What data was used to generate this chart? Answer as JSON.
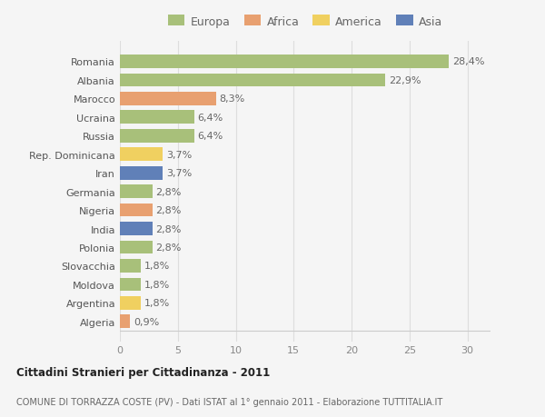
{
  "countries": [
    "Romania",
    "Albania",
    "Marocco",
    "Ucraina",
    "Russia",
    "Rep. Dominicana",
    "Iran",
    "Germania",
    "Nigeria",
    "India",
    "Polonia",
    "Slovacchia",
    "Moldova",
    "Argentina",
    "Algeria"
  ],
  "values": [
    28.4,
    22.9,
    8.3,
    6.4,
    6.4,
    3.7,
    3.7,
    2.8,
    2.8,
    2.8,
    2.8,
    1.8,
    1.8,
    1.8,
    0.9
  ],
  "labels": [
    "28,4%",
    "22,9%",
    "8,3%",
    "6,4%",
    "6,4%",
    "3,7%",
    "3,7%",
    "2,8%",
    "2,8%",
    "2,8%",
    "2,8%",
    "1,8%",
    "1,8%",
    "1,8%",
    "0,9%"
  ],
  "colors": [
    "#a8c07a",
    "#a8c07a",
    "#e8a070",
    "#a8c07a",
    "#a8c07a",
    "#f0d060",
    "#6080b8",
    "#a8c07a",
    "#e8a070",
    "#6080b8",
    "#a8c07a",
    "#a8c07a",
    "#a8c07a",
    "#f0d060",
    "#e8a070"
  ],
  "legend": {
    "Europa": "#a8c07a",
    "Africa": "#e8a070",
    "America": "#f0d060",
    "Asia": "#6080b8"
  },
  "xlim": [
    0,
    32
  ],
  "xticks": [
    0,
    5,
    10,
    15,
    20,
    25,
    30
  ],
  "title": "Cittadini Stranieri per Cittadinanza - 2011",
  "subtitle": "COMUNE DI TORRAZZA COSTE (PV) - Dati ISTAT al 1° gennaio 2011 - Elaborazione TUTTITALIA.IT",
  "background_color": "#f5f5f5",
  "grid_color": "#dddddd",
  "bar_height": 0.72,
  "label_fontsize": 8,
  "value_fontsize": 8,
  "tick_fontsize": 8
}
